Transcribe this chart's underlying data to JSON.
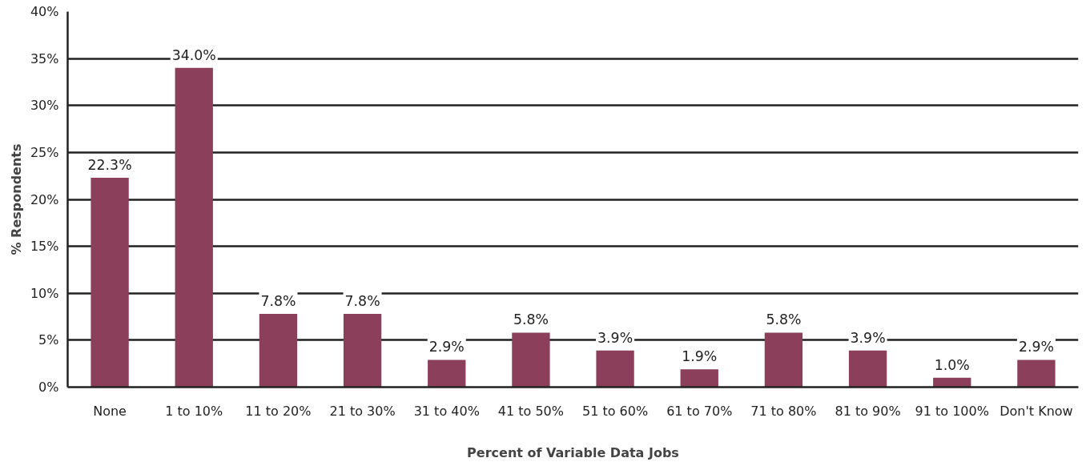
{
  "chart_data": {
    "type": "bar",
    "xlabel": "Percent of Variable Data Jobs",
    "ylabel": "% Respondents",
    "categories": [
      "None",
      "1 to 10%",
      "11 to 20%",
      "21 to 30%",
      "31 to 40%",
      "41 to 50%",
      "51 to 60%",
      "61 to 70%",
      "71 to 80%",
      "81 to 90%",
      "91 to 100%",
      "Don't Know"
    ],
    "values": [
      22.3,
      34.0,
      7.8,
      7.8,
      2.9,
      5.8,
      3.9,
      1.9,
      5.8,
      3.9,
      1.0,
      2.9
    ],
    "value_labels": [
      "22.3%",
      "34.0%",
      "7.8%",
      "7.8%",
      "2.9%",
      "5.8%",
      "3.9%",
      "1.9%",
      "5.8%",
      "3.9%",
      "1.0%",
      "2.9%"
    ],
    "color": "#8b3f5a",
    "ylim": [
      0,
      40
    ],
    "yticks": [
      {
        "value": 0,
        "label": "0%"
      },
      {
        "value": 5,
        "label": "5%"
      },
      {
        "value": 10,
        "label": "10%"
      },
      {
        "value": 15,
        "label": "15%"
      },
      {
        "value": 20,
        "label": "20%"
      },
      {
        "value": 25,
        "label": "25%"
      },
      {
        "value": 30,
        "label": "30%"
      },
      {
        "value": 35,
        "label": "35%"
      },
      {
        "value": 40,
        "label": "40%"
      }
    ],
    "grid": "y"
  }
}
